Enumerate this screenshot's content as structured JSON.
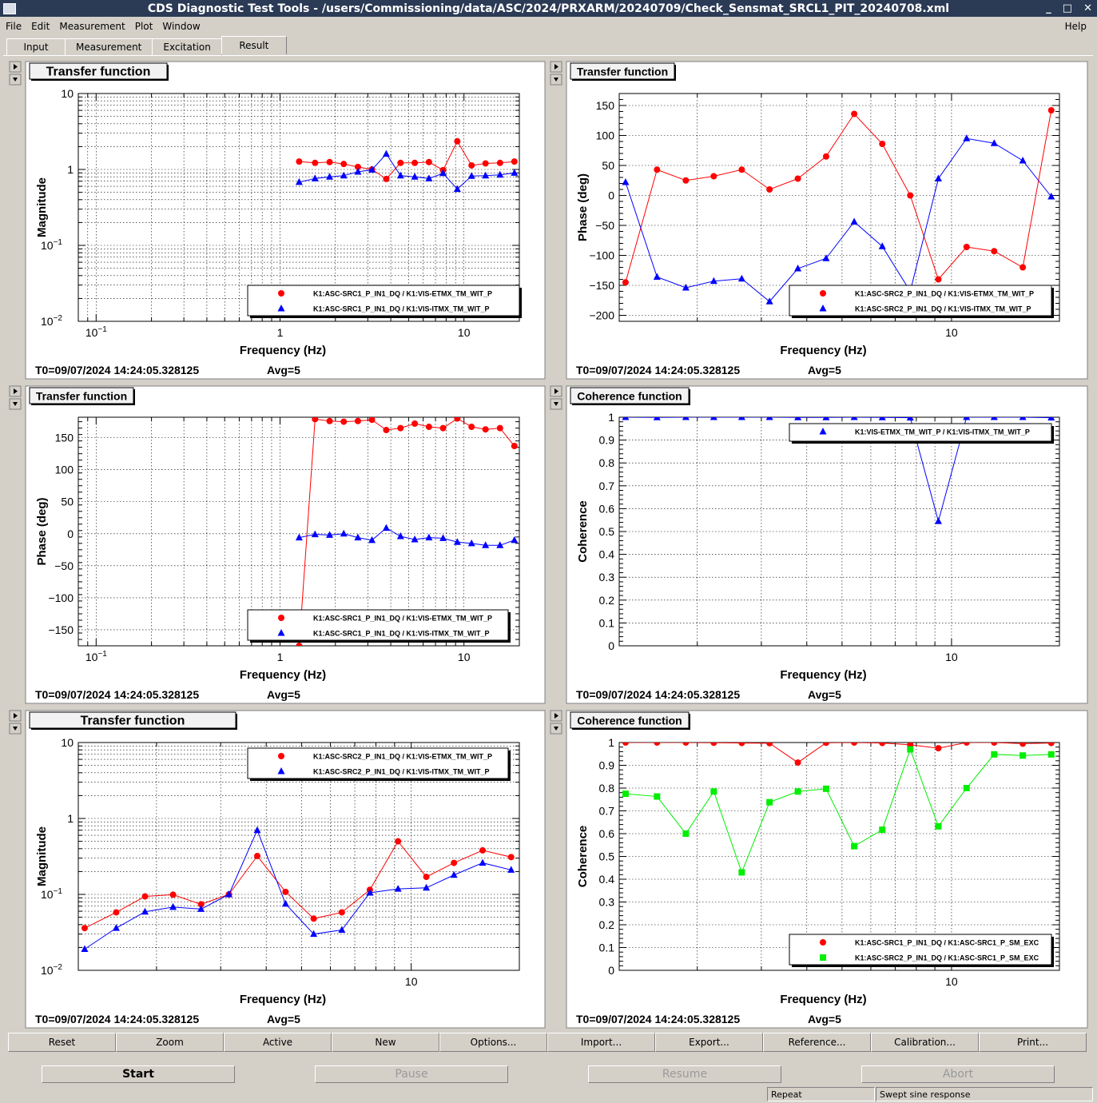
{
  "window": {
    "title": "CDS Diagnostic Test Tools - /users/Commissioning/data/ASC/2024/PRXARM/20240709/Check_Sensmat_SRCL1_PIT_20240708.xml",
    "controls": [
      "_",
      "□",
      "✕"
    ]
  },
  "menu": {
    "items": [
      "File",
      "Edit",
      "Measurement",
      "Plot",
      "Window"
    ],
    "help": "Help"
  },
  "tabs": [
    {
      "label": "Input"
    },
    {
      "label": "Measurement"
    },
    {
      "label": "Excitation"
    },
    {
      "label": "Result"
    }
  ],
  "active_tab": "Result",
  "icons": {
    "pad_up": "triangle-right-icon",
    "pad_down": "triangle-down-icon"
  },
  "chart_data": [
    {
      "id": "p1",
      "type": "scatter",
      "title": "Transfer function",
      "xlabel": "Frequency (Hz)",
      "ylabel": "Magnitude",
      "xscale": "log",
      "yscale": "log",
      "xlim": [
        0.08,
        20
      ],
      "ylim": [
        0.01,
        10
      ],
      "xticks": [
        {
          "v": 0.1,
          "t": "10",
          "sup": "−1"
        },
        {
          "v": 1,
          "t": "1"
        },
        {
          "v": 10,
          "t": "10"
        }
      ],
      "yticks": [
        {
          "v": 10,
          "t": "10"
        },
        {
          "v": 1,
          "t": "1"
        },
        {
          "v": 0.1,
          "t": "10",
          "sup": "−1"
        },
        {
          "v": 0.01,
          "t": "10",
          "sup": "−2"
        }
      ],
      "legend_position": "bottom-right",
      "series": [
        {
          "name": "K1:ASC-SRC1_P_IN1_DQ / K1:VIS-ETMX_TM_WIT_P",
          "color": "#ff0000",
          "marker": "circle",
          "x": [
            1.27,
            1.55,
            1.86,
            2.22,
            2.65,
            3.16,
            3.78,
            4.52,
            5.4,
            6.45,
            7.7,
            9.2,
            11.0,
            13.1,
            15.7,
            18.8
          ],
          "y": [
            1.27,
            1.22,
            1.25,
            1.18,
            1.08,
            1.0,
            0.75,
            1.22,
            1.22,
            1.25,
            0.98,
            2.35,
            1.13,
            1.2,
            1.22,
            1.27
          ]
        },
        {
          "name": "K1:ASC-SRC1_P_IN1_DQ / K1:VIS-ITMX_TM_WIT_P",
          "color": "#0000ff",
          "marker": "triangle",
          "x": [
            1.27,
            1.55,
            1.86,
            2.22,
            2.65,
            3.16,
            3.78,
            4.52,
            5.4,
            6.45,
            7.7,
            9.2,
            11.0,
            13.1,
            15.7,
            18.8
          ],
          "y": [
            0.68,
            0.76,
            0.8,
            0.83,
            0.93,
            0.99,
            1.6,
            0.83,
            0.8,
            0.76,
            0.89,
            0.55,
            0.82,
            0.83,
            0.85,
            0.9
          ]
        }
      ],
      "footer": {
        "t0": "T0=09/07/2024 14:24:05.328125",
        "avg": "Avg=5"
      }
    },
    {
      "id": "p2",
      "type": "scatter",
      "title": "Transfer function",
      "xlabel": "Frequency (Hz)",
      "ylabel": "Phase (deg)",
      "xscale": "log",
      "yscale": "linear",
      "xlim": [
        1.22,
        19.8
      ],
      "ylim": [
        -210,
        170
      ],
      "xticks": [
        {
          "v": 10,
          "t": "10"
        }
      ],
      "yticks": [
        {
          "v": 150,
          "t": "150"
        },
        {
          "v": 100,
          "t": "100"
        },
        {
          "v": 50,
          "t": "50"
        },
        {
          "v": 0,
          "t": "0"
        },
        {
          "v": -50,
          "t": "−50"
        },
        {
          "v": -100,
          "t": "−100"
        },
        {
          "v": -150,
          "t": "−150"
        },
        {
          "v": -200,
          "t": "−200"
        }
      ],
      "legend_position": "bottom-right",
      "series": [
        {
          "name": "K1:ASC-SRC2_P_IN1_DQ / K1:VIS-ETMX_TM_WIT_P",
          "color": "#ff0000",
          "marker": "circle",
          "x": [
            1.27,
            1.55,
            1.86,
            2.22,
            2.65,
            3.16,
            3.78,
            4.52,
            5.4,
            6.45,
            7.7,
            9.2,
            11.0,
            13.1,
            15.7,
            18.8
          ],
          "y": [
            -145,
            43,
            25,
            32,
            43,
            10,
            28,
            65,
            136,
            86,
            0,
            -140,
            -86,
            -93,
            -120,
            142
          ]
        },
        {
          "name": "K1:ASC-SRC2_P_IN1_DQ / K1:VIS-ITMX_TM_WIT_P",
          "color": "#0000ff",
          "marker": "triangle",
          "x": [
            1.27,
            1.55,
            1.86,
            2.22,
            2.65,
            3.16,
            3.78,
            4.52,
            5.4,
            6.45,
            7.7,
            9.2,
            11.0,
            13.1,
            15.7,
            18.8
          ],
          "y": [
            22,
            -136,
            -154,
            -143,
            -139,
            -177,
            -122,
            -105,
            -44,
            -85,
            -160,
            28,
            95,
            87,
            58,
            -2
          ]
        }
      ],
      "footer": {
        "t0": "T0=09/07/2024 14:24:05.328125",
        "avg": "Avg=5"
      }
    },
    {
      "id": "p3",
      "type": "scatter",
      "title": "Transfer function",
      "xlabel": "Frequency (Hz)",
      "ylabel": "Phase (deg)",
      "xscale": "log",
      "yscale": "linear",
      "xlim": [
        0.08,
        20
      ],
      "ylim": [
        -175,
        182
      ],
      "xticks": [
        {
          "v": 0.1,
          "t": "10",
          "sup": "−1"
        },
        {
          "v": 1,
          "t": "1"
        },
        {
          "v": 10,
          "t": "10"
        }
      ],
      "yticks": [
        {
          "v": 150,
          "t": "150"
        },
        {
          "v": 100,
          "t": "100"
        },
        {
          "v": 50,
          "t": "50"
        },
        {
          "v": 0,
          "t": "0"
        },
        {
          "v": -50,
          "t": "−50"
        },
        {
          "v": -100,
          "t": "−100"
        },
        {
          "v": -150,
          "t": "−150"
        }
      ],
      "legend_position": "bottom-right",
      "series": [
        {
          "name": "K1:ASC-SRC1_P_IN1_DQ / K1:VIS-ETMX_TM_WIT_P",
          "color": "#ff0000",
          "marker": "circle",
          "x": [
            1.27,
            1.55,
            1.86,
            2.22,
            2.65,
            3.16,
            3.78,
            4.52,
            5.4,
            6.45,
            7.7,
            9.2,
            11.0,
            13.1,
            15.7,
            18.8
          ],
          "y": [
            -175,
            179,
            176,
            175,
            176,
            178,
            162,
            165,
            172,
            167,
            165,
            180,
            167,
            163,
            165,
            137
          ]
        },
        {
          "name": "K1:ASC-SRC1_P_IN1_DQ / K1:VIS-ITMX_TM_WIT_P",
          "color": "#0000ff",
          "marker": "triangle",
          "x": [
            1.27,
            1.55,
            1.86,
            2.22,
            2.65,
            3.16,
            3.78,
            4.52,
            5.4,
            6.45,
            7.7,
            9.2,
            11.0,
            13.1,
            15.7,
            18.8
          ],
          "y": [
            -6,
            -1,
            -2,
            0,
            -6,
            -10,
            9,
            -4,
            -9,
            -6,
            -7,
            -13,
            -15,
            -18,
            -18,
            -10
          ]
        }
      ],
      "footer": {
        "t0": "T0=09/07/2024 14:24:05.328125",
        "avg": "Avg=5"
      }
    },
    {
      "id": "p4",
      "type": "scatter",
      "title": "Coherence function",
      "xlabel": "Frequency (Hz)",
      "ylabel": "Coherence",
      "xscale": "log",
      "yscale": "linear",
      "xlim": [
        1.22,
        19.8
      ],
      "ylim": [
        0,
        1
      ],
      "xticks": [
        {
          "v": 10,
          "t": "10"
        }
      ],
      "yticks": [
        {
          "v": 1,
          "t": "1"
        },
        {
          "v": 0.9,
          "t": "0.9"
        },
        {
          "v": 0.8,
          "t": "0.8"
        },
        {
          "v": 0.7,
          "t": "0.7"
        },
        {
          "v": 0.6,
          "t": "0.6"
        },
        {
          "v": 0.5,
          "t": "0.5"
        },
        {
          "v": 0.4,
          "t": "0.4"
        },
        {
          "v": 0.3,
          "t": "0.3"
        },
        {
          "v": 0.2,
          "t": "0.2"
        },
        {
          "v": 0.1,
          "t": "0.1"
        },
        {
          "v": 0,
          "t": "0"
        }
      ],
      "legend_position": "top-right",
      "series": [
        {
          "name": "K1:VIS-ETMX_TM_WIT_P / K1:VIS-ITMX_TM_WIT_P",
          "color": "#0000ff",
          "marker": "triangle",
          "x": [
            1.27,
            1.55,
            1.86,
            2.22,
            2.65,
            3.16,
            3.78,
            4.52,
            5.4,
            6.45,
            7.7,
            9.2,
            11.0,
            13.1,
            15.7,
            18.8
          ],
          "y": [
            1.0,
            0.999,
            1.0,
            1.0,
            1.0,
            1.0,
            0.999,
            0.999,
            1.0,
            0.999,
            0.998,
            0.545,
            1.0,
            1.0,
            1.0,
            0.998
          ]
        }
      ],
      "footer": {
        "t0": "T0=09/07/2024 14:24:05.328125",
        "avg": "Avg=5"
      }
    },
    {
      "id": "p5",
      "type": "scatter",
      "title": "Transfer function",
      "xlabel": "Frequency (Hz)",
      "ylabel": "Magnitude",
      "xscale": "log",
      "yscale": "log",
      "xlim": [
        1.22,
        19.8
      ],
      "ylim": [
        0.01,
        10
      ],
      "xticks": [
        {
          "v": 10,
          "t": "10"
        }
      ],
      "yticks": [
        {
          "v": 10,
          "t": "10"
        },
        {
          "v": 1,
          "t": "1"
        },
        {
          "v": 0.1,
          "t": "10",
          "sup": "−1"
        },
        {
          "v": 0.01,
          "t": "10",
          "sup": "−2"
        }
      ],
      "legend_position": "top-right",
      "series": [
        {
          "name": "K1:ASC-SRC2_P_IN1_DQ / K1:VIS-ETMX_TM_WIT_P",
          "color": "#ff0000",
          "marker": "circle",
          "x": [
            1.27,
            1.55,
            1.86,
            2.22,
            2.65,
            3.16,
            3.78,
            4.52,
            5.4,
            6.45,
            7.7,
            9.2,
            11.0,
            13.1,
            15.7,
            18.8
          ],
          "y": [
            0.036,
            0.058,
            0.094,
            0.099,
            0.074,
            0.1,
            0.32,
            0.108,
            0.048,
            0.058,
            0.115,
            0.5,
            0.17,
            0.26,
            0.38,
            0.31
          ]
        },
        {
          "name": "K1:ASC-SRC2_P_IN1_DQ / K1:VIS-ITMX_TM_WIT_P",
          "color": "#0000ff",
          "marker": "triangle",
          "x": [
            1.27,
            1.55,
            1.86,
            2.22,
            2.65,
            3.16,
            3.78,
            4.52,
            5.4,
            6.45,
            7.7,
            9.2,
            11.0,
            13.1,
            15.7,
            18.8
          ],
          "y": [
            0.019,
            0.036,
            0.059,
            0.068,
            0.064,
            0.1,
            0.7,
            0.075,
            0.03,
            0.034,
            0.105,
            0.118,
            0.122,
            0.18,
            0.26,
            0.21
          ]
        }
      ],
      "footer": {
        "t0": "T0=09/07/2024 14:24:05.328125",
        "avg": "Avg=5"
      }
    },
    {
      "id": "p6",
      "type": "scatter",
      "title": "Coherence function",
      "xlabel": "Frequency (Hz)",
      "ylabel": "Coherence",
      "xscale": "log",
      "yscale": "linear",
      "xlim": [
        1.22,
        19.8
      ],
      "ylim": [
        0,
        1
      ],
      "xticks": [
        {
          "v": 10,
          "t": "10"
        }
      ],
      "yticks": [
        {
          "v": 1,
          "t": "1"
        },
        {
          "v": 0.9,
          "t": "0.9"
        },
        {
          "v": 0.8,
          "t": "0.8"
        },
        {
          "v": 0.7,
          "t": "0.7"
        },
        {
          "v": 0.6,
          "t": "0.6"
        },
        {
          "v": 0.5,
          "t": "0.5"
        },
        {
          "v": 0.4,
          "t": "0.4"
        },
        {
          "v": 0.3,
          "t": "0.3"
        },
        {
          "v": 0.2,
          "t": "0.2"
        },
        {
          "v": 0.1,
          "t": "0.1"
        },
        {
          "v": 0,
          "t": "0"
        }
      ],
      "legend_position": "bottom-right",
      "series": [
        {
          "name": "K1:ASC-SRC1_P_IN1_DQ / K1:ASC-SRC1_P_SM_EXC",
          "color": "#ff0000",
          "marker": "circle",
          "x": [
            1.27,
            1.55,
            1.86,
            2.22,
            2.65,
            3.16,
            3.78,
            4.52,
            5.4,
            6.45,
            7.7,
            9.2,
            11.0,
            13.1,
            15.7,
            18.8
          ],
          "y": [
            1.0,
            1.0,
            1.0,
            0.999,
            0.998,
            0.997,
            0.912,
            0.999,
            1.0,
            0.998,
            0.99,
            0.975,
            1.0,
            1.0,
            0.995,
            0.998
          ]
        },
        {
          "name": "K1:ASC-SRC2_P_IN1_DQ / K1:ASC-SRC1_P_SM_EXC",
          "color": "#00ee00",
          "marker": "square",
          "x": [
            1.27,
            1.55,
            1.86,
            2.22,
            2.65,
            3.16,
            3.78,
            4.52,
            5.4,
            6.45,
            7.7,
            9.2,
            11.0,
            13.1,
            15.7,
            18.8
          ],
          "y": [
            0.775,
            0.763,
            0.6,
            0.785,
            0.43,
            0.738,
            0.785,
            0.797,
            0.545,
            0.617,
            0.97,
            0.632,
            0.8,
            0.948,
            0.943,
            0.948
          ]
        }
      ],
      "footer": {
        "t0": "T0=09/07/2024 14:24:05.328125",
        "avg": "Avg=5"
      }
    }
  ],
  "toolbar": [
    "Reset",
    "Zoom",
    "Active",
    "New",
    "Options...",
    "Import...",
    "Export...",
    "Reference...",
    "Calibration...",
    "Print..."
  ],
  "controls": {
    "start": "Start",
    "pause": "Pause",
    "resume": "Resume",
    "abort": "Abort"
  },
  "status": {
    "repeat": "Repeat",
    "mode": "Swept sine response"
  }
}
